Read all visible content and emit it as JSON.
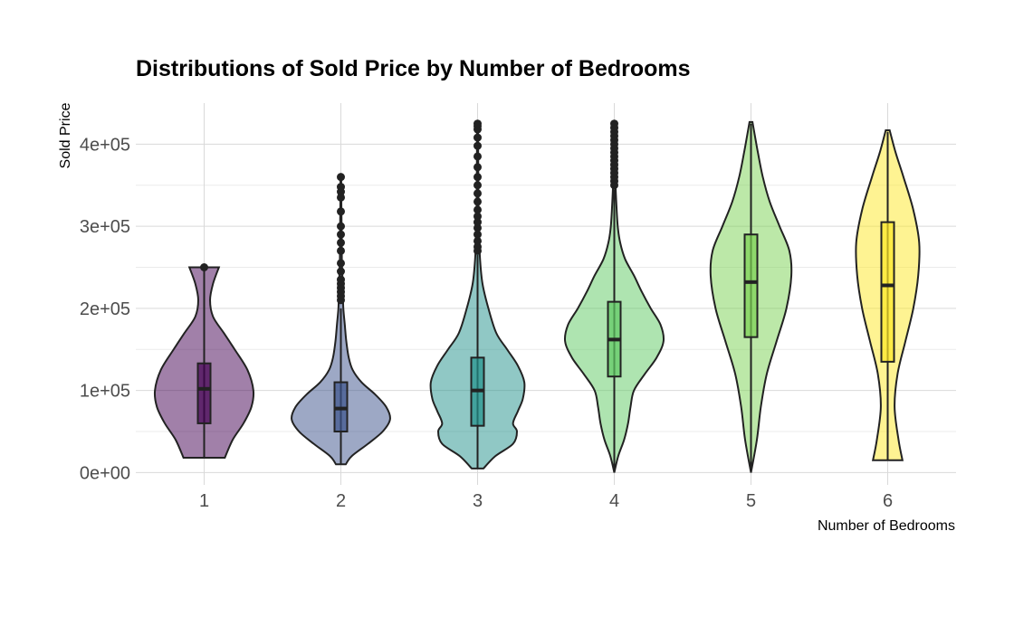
{
  "chart_data": {
    "type": "violin",
    "title": "Distributions of Sold Price by Number of Bedrooms",
    "xlabel": "Number of Bedrooms",
    "ylabel": "Sold Price",
    "categories": [
      "1",
      "2",
      "3",
      "4",
      "5",
      "6"
    ],
    "ylim": [
      -15000,
      450000
    ],
    "yticks": [
      0,
      100000,
      200000,
      300000,
      400000
    ],
    "ytick_labels": [
      "0e+00",
      "1e+05",
      "2e+05",
      "3e+05",
      "4e+05"
    ],
    "grid": true,
    "series": [
      {
        "category": "1",
        "color": "#440154",
        "box": {
          "q1": 60000,
          "median": 102000,
          "q3": 133000,
          "whisker_low": 18000,
          "whisker_high": 249000
        },
        "outliers": [
          250000
        ],
        "density": [
          [
            18000,
            0.42
          ],
          [
            40000,
            0.58
          ],
          [
            60000,
            0.8
          ],
          [
            80000,
            0.96
          ],
          [
            100000,
            1.0
          ],
          [
            125000,
            0.88
          ],
          [
            150000,
            0.62
          ],
          [
            170000,
            0.4
          ],
          [
            190000,
            0.18
          ],
          [
            210000,
            0.12
          ],
          [
            230000,
            0.18
          ],
          [
            250000,
            0.3
          ]
        ]
      },
      {
        "category": "2",
        "color": "#3b528b",
        "box": {
          "q1": 50000,
          "median": 78000,
          "q3": 110000,
          "whisker_low": 10000,
          "whisker_high": 200000
        },
        "outliers": [
          210000,
          215000,
          220000,
          225000,
          230000,
          235000,
          245000,
          255000,
          270000,
          280000,
          290000,
          300000,
          318000,
          335000,
          342000,
          348000,
          360000
        ],
        "density": [
          [
            10000,
            0.1
          ],
          [
            20000,
            0.22
          ],
          [
            35000,
            0.55
          ],
          [
            50000,
            0.85
          ],
          [
            65000,
            1.0
          ],
          [
            80000,
            0.92
          ],
          [
            95000,
            0.7
          ],
          [
            110000,
            0.42
          ],
          [
            125000,
            0.24
          ],
          [
            140000,
            0.16
          ],
          [
            160000,
            0.11
          ],
          [
            180000,
            0.08
          ],
          [
            200000,
            0.05
          ],
          [
            220000,
            0.04
          ],
          [
            240000,
            0.03
          ],
          [
            260000,
            0.02
          ],
          [
            280000,
            0.02
          ],
          [
            300000,
            0.015
          ],
          [
            330000,
            0.01
          ],
          [
            360000,
            0.008
          ]
        ]
      },
      {
        "category": "3",
        "color": "#21918c",
        "box": {
          "q1": 57000,
          "median": 100000,
          "q3": 140000,
          "whisker_low": 5000,
          "whisker_high": 265000
        },
        "outliers": [
          270000,
          275000,
          282000,
          290000,
          298000,
          305000,
          312000,
          320000,
          330000,
          340000,
          350000,
          360000,
          372000,
          385000,
          398000,
          408000,
          418000,
          422000,
          425000
        ],
        "density": [
          [
            5000,
            0.12
          ],
          [
            20000,
            0.36
          ],
          [
            35000,
            0.72
          ],
          [
            50000,
            0.8
          ],
          [
            60000,
            0.72
          ],
          [
            75000,
            0.82
          ],
          [
            90000,
            0.92
          ],
          [
            110000,
            0.95
          ],
          [
            130000,
            0.82
          ],
          [
            150000,
            0.6
          ],
          [
            170000,
            0.38
          ],
          [
            200000,
            0.22
          ],
          [
            230000,
            0.1
          ],
          [
            260000,
            0.05
          ],
          [
            290000,
            0.03
          ],
          [
            320000,
            0.02
          ],
          [
            360000,
            0.015
          ],
          [
            400000,
            0.012
          ],
          [
            425000,
            0.01
          ]
        ]
      },
      {
        "category": "4",
        "color": "#5ec962",
        "box": {
          "q1": 117000,
          "median": 162000,
          "q3": 208000,
          "whisker_low": 0,
          "whisker_high": 345000
        },
        "outliers": [
          350000,
          355000,
          360000,
          365000,
          370000,
          375000,
          380000,
          385000,
          390000,
          395000,
          400000,
          405000,
          410000,
          415000,
          420000,
          425000
        ],
        "density": [
          [
            0,
            0.0
          ],
          [
            20000,
            0.08
          ],
          [
            40000,
            0.2
          ],
          [
            60000,
            0.28
          ],
          [
            80000,
            0.33
          ],
          [
            100000,
            0.4
          ],
          [
            120000,
            0.62
          ],
          [
            140000,
            0.86
          ],
          [
            160000,
            1.0
          ],
          [
            180000,
            0.94
          ],
          [
            200000,
            0.74
          ],
          [
            220000,
            0.56
          ],
          [
            240000,
            0.4
          ],
          [
            260000,
            0.22
          ],
          [
            280000,
            0.12
          ],
          [
            300000,
            0.07
          ],
          [
            330000,
            0.04
          ],
          [
            360000,
            0.02
          ],
          [
            400000,
            0.012
          ],
          [
            425000,
            0.01
          ]
        ]
      },
      {
        "category": "5",
        "color": "#7ad151",
        "box": {
          "q1": 165000,
          "median": 232000,
          "q3": 290000,
          "whisker_low": 0,
          "whisker_high": 425000
        },
        "outliers": [],
        "density": [
          [
            0,
            0.0
          ],
          [
            40000,
            0.12
          ],
          [
            80000,
            0.2
          ],
          [
            120000,
            0.32
          ],
          [
            160000,
            0.52
          ],
          [
            200000,
            0.72
          ],
          [
            240000,
            0.82
          ],
          [
            270000,
            0.78
          ],
          [
            300000,
            0.58
          ],
          [
            330000,
            0.38
          ],
          [
            360000,
            0.24
          ],
          [
            390000,
            0.14
          ],
          [
            410000,
            0.08
          ],
          [
            427000,
            0.03
          ]
        ]
      },
      {
        "category": "6",
        "color": "#fde725",
        "box": {
          "q1": 135000,
          "median": 228000,
          "q3": 305000,
          "whisker_low": 15000,
          "whisker_high": 415000
        },
        "outliers": [],
        "density": [
          [
            15000,
            0.3
          ],
          [
            40000,
            0.22
          ],
          [
            80000,
            0.14
          ],
          [
            120000,
            0.2
          ],
          [
            160000,
            0.36
          ],
          [
            200000,
            0.52
          ],
          [
            240000,
            0.62
          ],
          [
            280000,
            0.64
          ],
          [
            320000,
            0.52
          ],
          [
            360000,
            0.32
          ],
          [
            390000,
            0.16
          ],
          [
            417000,
            0.04
          ]
        ]
      }
    ]
  }
}
